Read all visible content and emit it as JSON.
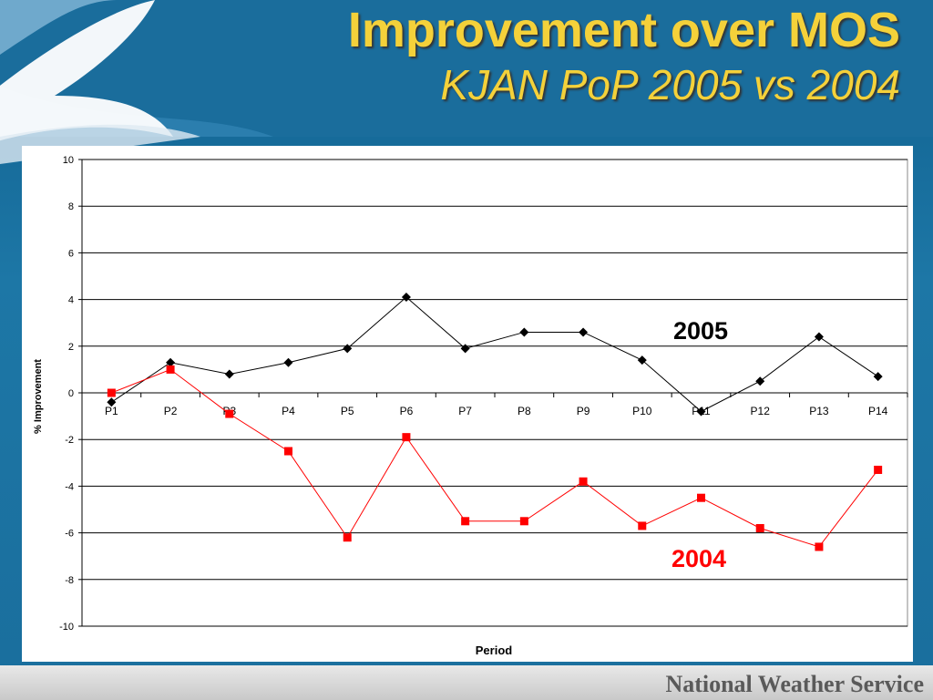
{
  "slide": {
    "title": "Improvement over MOS",
    "subtitle": "KJAN PoP 2005 vs 2004",
    "footer": "National Weather Service"
  },
  "colors": {
    "title": "#f4d13a",
    "series_2005": "#000000",
    "series_2004": "#ff0000"
  },
  "chart_data": {
    "type": "line",
    "xlabel": "Period",
    "ylabel": "% Improvement",
    "ylim": [
      -10,
      10
    ],
    "yticks": [
      10,
      8,
      6,
      4,
      2,
      0,
      -2,
      -4,
      -6,
      -8,
      -10
    ],
    "grid": true,
    "categories": [
      "P1",
      "P2",
      "P3",
      "P4",
      "P5",
      "P6",
      "P7",
      "P8",
      "P9",
      "P10",
      "P11",
      "P12",
      "P13",
      "P14"
    ],
    "series": [
      {
        "name": "2005",
        "color": "#000000",
        "marker": "diamond",
        "values": [
          -0.4,
          1.3,
          0.8,
          1.3,
          1.9,
          4.1,
          1.9,
          2.6,
          2.6,
          1.4,
          -0.8,
          0.5,
          2.4,
          0.7
        ]
      },
      {
        "name": "2004",
        "color": "#ff0000",
        "marker": "square",
        "values": [
          0.0,
          1.0,
          -0.9,
          -2.5,
          -6.2,
          -1.9,
          -5.5,
          -5.5,
          -3.8,
          -5.7,
          -4.5,
          -5.8,
          -6.6,
          -3.3
        ]
      }
    ]
  }
}
